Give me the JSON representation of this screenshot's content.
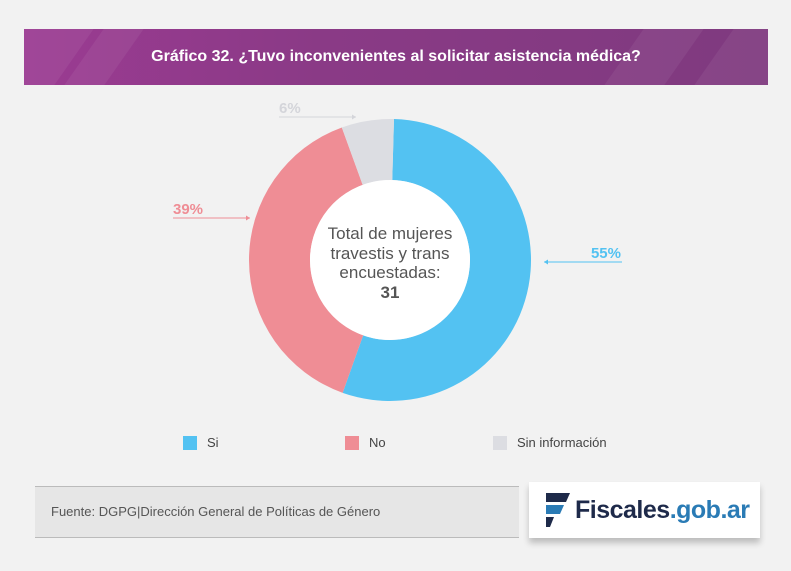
{
  "header": {
    "title": "Gráfico 32. ¿Tuvo inconvenientes al solicitar asistencia médica?"
  },
  "chart_data": {
    "type": "pie",
    "variant": "donut",
    "title": "Gráfico 32. ¿Tuvo inconvenientes al solicitar asistencia médica?",
    "categories": [
      "Si",
      "No",
      "Sin información"
    ],
    "values": [
      55,
      39,
      6
    ],
    "unit": "%",
    "value_labels": [
      "55%",
      "39%",
      "6%"
    ],
    "colors": [
      "#53c2f2",
      "#ef8d95",
      "#dcdde2"
    ],
    "legend_position": "bottom"
  },
  "center": {
    "line1": "Total de mujeres",
    "line2": "travestis y trans",
    "line3": "encuestadas:",
    "total": "31"
  },
  "legend": [
    {
      "label": "Si",
      "color": "#53c2f2"
    },
    {
      "label": "No",
      "color": "#ef8d95"
    },
    {
      "label": "Sin información",
      "color": "#dcdde2"
    }
  ],
  "footer": {
    "source": "Fuente: DGPG|Dirección General de Políticas de Género",
    "logo_name": "Fiscales",
    "logo_domain": ".gob.ar"
  }
}
